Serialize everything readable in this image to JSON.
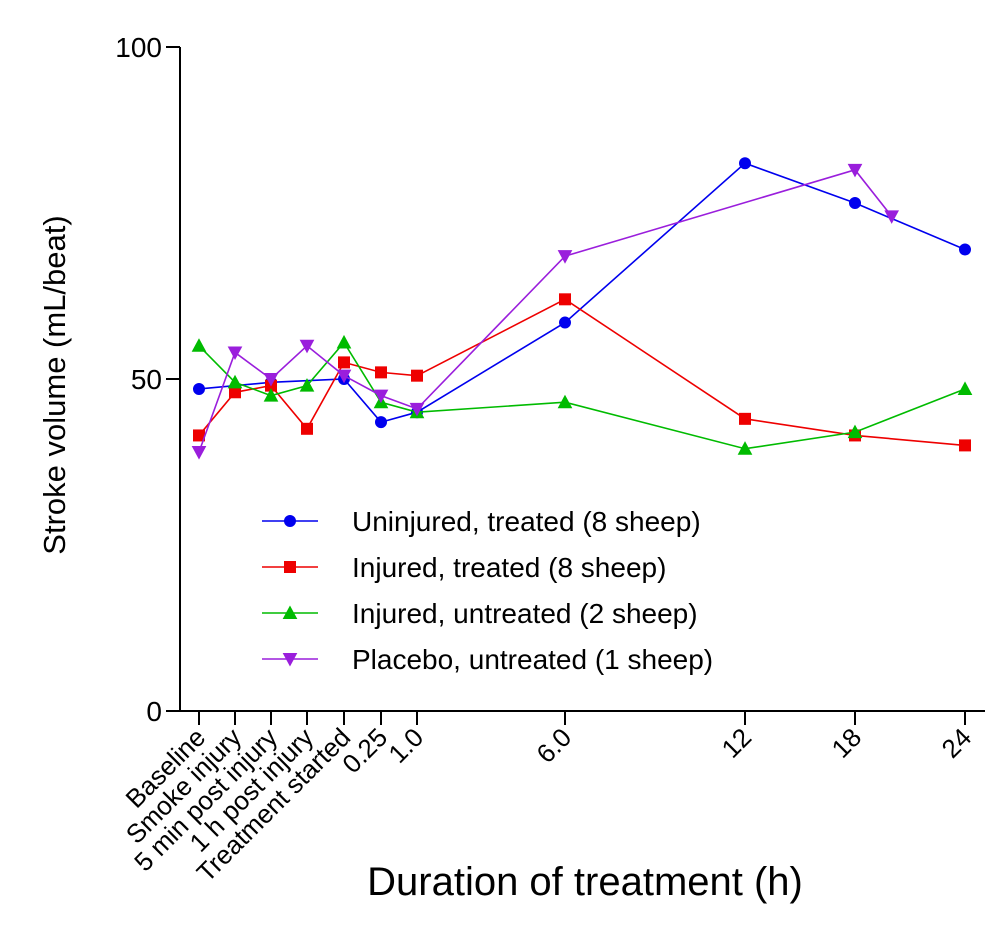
{
  "chart_data": {
    "type": "line",
    "title": "",
    "xlabel": "Duration of treatment (h)",
    "ylabel": "Stroke volume (mL/beat)",
    "ylim": [
      0,
      100
    ],
    "yticks": [
      0,
      50,
      100
    ],
    "grid": false,
    "legend_position": "lower-center",
    "categories": [
      "Baseline",
      "Smoke injury",
      "5 min post injury",
      "1 h post injury",
      "Treatment started",
      "0.25",
      "1.0",
      "6.0",
      "12",
      "18",
      "24"
    ],
    "series": [
      {
        "name": "Uninjured, treated (8 sheep)",
        "color": "#0000ee",
        "marker": "circle",
        "points": [
          {
            "x": "Baseline",
            "y": 48.5
          },
          {
            "x": "5 min post injury",
            "y": 49.5
          },
          {
            "x": "Treatment started",
            "y": 50
          },
          {
            "x": "0.25",
            "y": 43.5
          },
          {
            "x": "1.0",
            "y": 45
          },
          {
            "x": "6.0",
            "y": 58.5
          },
          {
            "x": "12",
            "y": 82.5
          },
          {
            "x": "18",
            "y": 76.5
          },
          {
            "x": "24",
            "y": 69.5
          }
        ]
      },
      {
        "name": "Injured, treated (8 sheep)",
        "color": "#ee0000",
        "marker": "square",
        "points": [
          {
            "x": "Baseline",
            "y": 41.5
          },
          {
            "x": "Smoke injury",
            "y": 48
          },
          {
            "x": "5 min post injury",
            "y": 49
          },
          {
            "x": "1 h post injury",
            "y": 42.5
          },
          {
            "x": "Treatment started",
            "y": 52.5
          },
          {
            "x": "0.25",
            "y": 51
          },
          {
            "x": "1.0",
            "y": 50.5
          },
          {
            "x": "6.0",
            "y": 62
          },
          {
            "x": "12",
            "y": 44
          },
          {
            "x": "18",
            "y": 41.5
          },
          {
            "x": "24",
            "y": 40
          }
        ]
      },
      {
        "name": "Injured, untreated (2 sheep)",
        "color": "#00bb00",
        "marker": "triangle-up",
        "points": [
          {
            "x": "Baseline",
            "y": 55
          },
          {
            "x": "Smoke injury",
            "y": 49.5
          },
          {
            "x": "5 min post injury",
            "y": 47.5
          },
          {
            "x": "1 h post injury",
            "y": 49
          },
          {
            "x": "Treatment started",
            "y": 55.5
          },
          {
            "x": "0.25",
            "y": 46.5
          },
          {
            "x": "1.0",
            "y": 45
          },
          {
            "x": "6.0",
            "y": 46.5
          },
          {
            "x": "12",
            "y": 39.5
          },
          {
            "x": "18",
            "y": 42
          },
          {
            "x": "24",
            "y": 48.5
          }
        ]
      },
      {
        "name": "Placebo, untreated (1 sheep)",
        "color": "#9a1edc",
        "marker": "triangle-down",
        "points": [
          {
            "x": "Baseline",
            "y": 39
          },
          {
            "x": "Smoke injury",
            "y": 54
          },
          {
            "x": "5 min post injury",
            "y": 50
          },
          {
            "x": "1 h post injury",
            "y": 55
          },
          {
            "x": "Treatment started",
            "y": 50.5
          },
          {
            "x": "0.25",
            "y": 47.5
          },
          {
            "x": "1.0",
            "y": 45.5
          },
          {
            "x": "6.0",
            "y": 68.5
          },
          {
            "x": "18",
            "y": 81.5
          },
          {
            "x": 20,
            "y": 74.5
          }
        ]
      }
    ]
  }
}
